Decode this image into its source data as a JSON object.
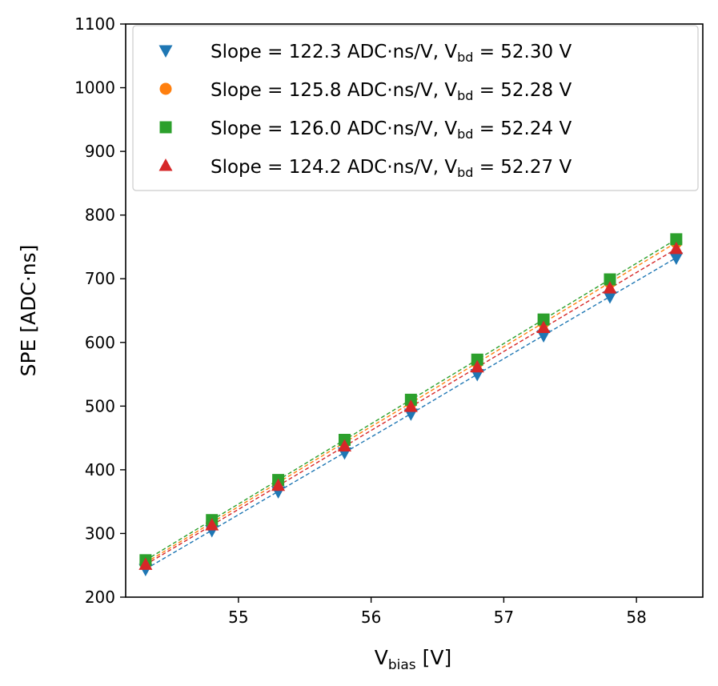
{
  "chart_data": {
    "type": "scatter",
    "title": "",
    "xlabel": {
      "main": "V",
      "sub": "bias",
      "unit": " [V]"
    },
    "ylabel": "SPE [ADC·ns]",
    "xlim": [
      54.15,
      58.5
    ],
    "ylim": [
      200,
      1100
    ],
    "xticks": [
      55,
      56,
      57,
      58
    ],
    "xtick_labels": [
      "55",
      "56",
      "57",
      "58"
    ],
    "yticks": [
      200,
      300,
      400,
      500,
      600,
      700,
      800,
      900,
      1000,
      1100
    ],
    "ytick_labels": [
      "200",
      "300",
      "400",
      "500",
      "600",
      "700",
      "800",
      "900",
      "1000",
      "1100"
    ],
    "x": [
      54.3,
      54.8,
      55.3,
      55.8,
      56.3,
      56.8,
      57.3,
      57.8,
      58.3
    ],
    "grid": false,
    "legend_position": "top-right",
    "series": [
      {
        "name": "series-1",
        "marker": "triangle-down",
        "color": "#1f77b4",
        "legend_prefix": "Slope = 122.3 ADC·ns/V, V",
        "legend_sub": "bd",
        "legend_suffix": " = 52.30 V",
        "values": [
          244,
          305,
          366,
          427,
          488,
          550,
          611,
          672,
          733
        ]
      },
      {
        "name": "series-2",
        "marker": "circle",
        "color": "#ff7f0e",
        "legend_prefix": "Slope = 125.8 ADC·ns/V, V",
        "legend_sub": "bd",
        "legend_suffix": " = 52.28 V",
        "values": [
          254,
          317,
          380,
          443,
          505,
          568,
          631,
          694,
          757
        ]
      },
      {
        "name": "series-3",
        "marker": "square",
        "color": "#2ca02c",
        "legend_prefix": "Slope = 126.0 ADC·ns/V, V",
        "legend_sub": "bd",
        "legend_suffix": " = 52.24 V",
        "values": [
          258,
          321,
          384,
          447,
          510,
          573,
          636,
          699,
          762
        ]
      },
      {
        "name": "series-4",
        "marker": "triangle-up",
        "color": "#d62728",
        "legend_prefix": "Slope = 124.2 ADC·ns/V, V",
        "legend_sub": "bd",
        "legend_suffix": " = 52.27 V",
        "values": [
          251,
          313,
          375,
          437,
          499,
          561,
          623,
          685,
          747
        ]
      }
    ]
  }
}
